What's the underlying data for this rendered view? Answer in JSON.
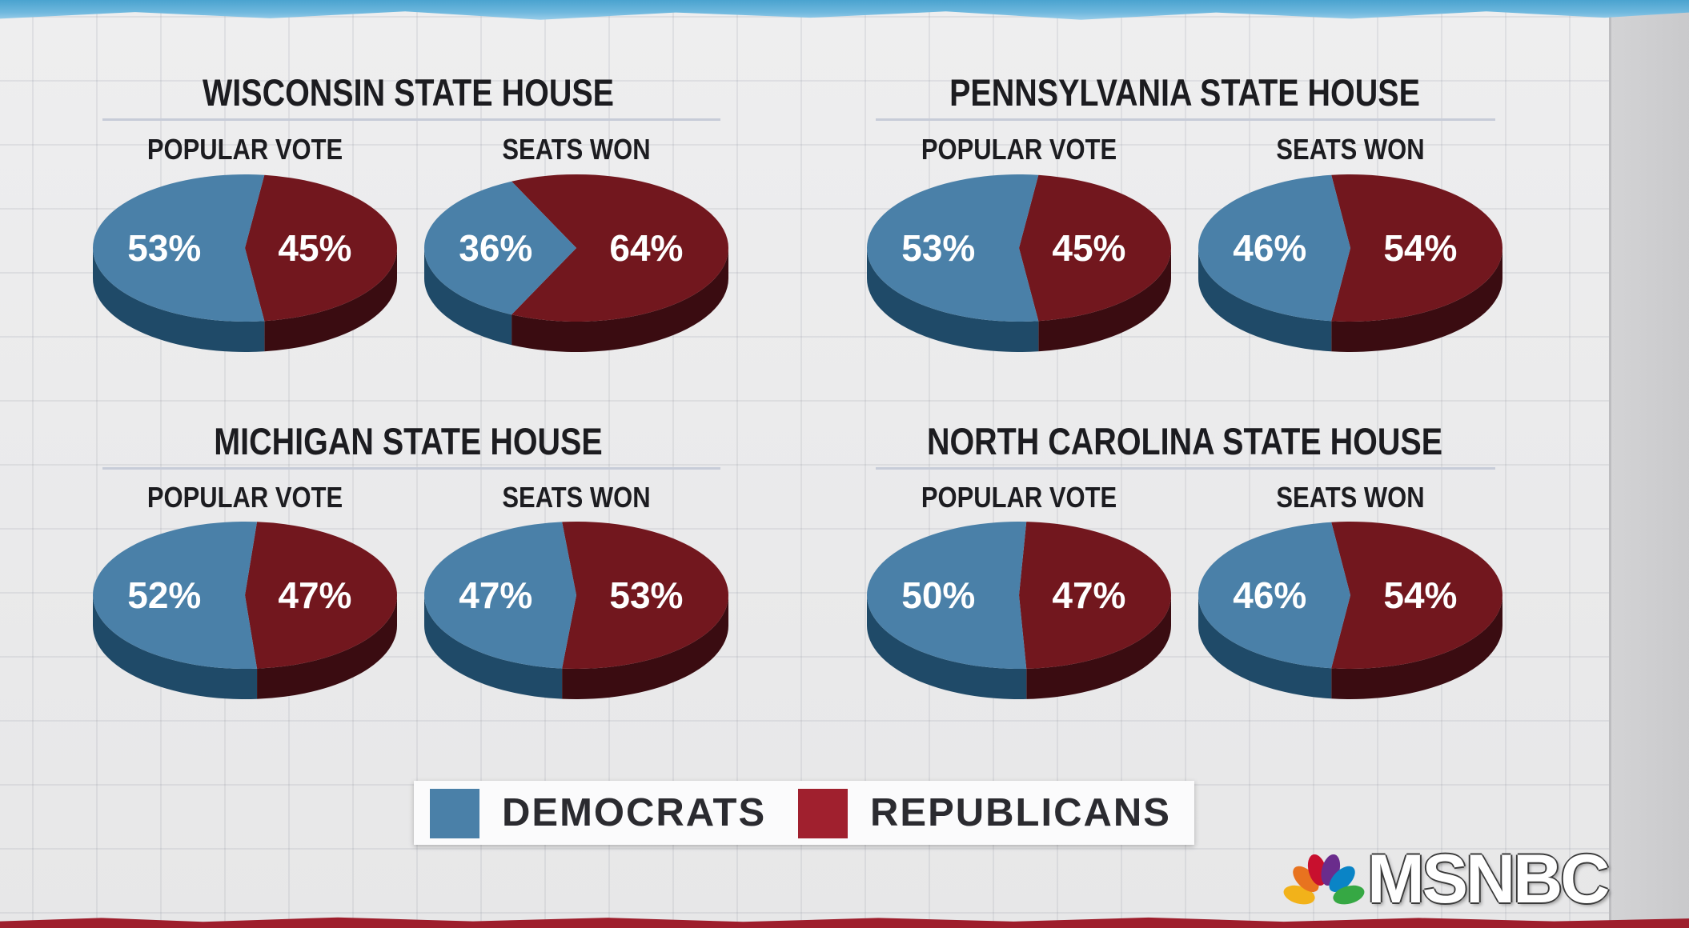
{
  "colors": {
    "democrats": "#4a80a8",
    "democrats_side": "#1f4a68",
    "republicans": "#72171e",
    "republicans_side": "#3a0c11",
    "label": "#ffffff"
  },
  "chart_data": [
    {
      "type": "pie",
      "title": "WISCONSIN STATE HOUSE",
      "panels": [
        {
          "label": "POPULAR VOTE",
          "slices": [
            {
              "name": "Democrats",
              "value": 53,
              "text": "53%"
            },
            {
              "name": "Republicans",
              "value": 45,
              "text": "45%"
            }
          ]
        },
        {
          "label": "SEATS WON",
          "slices": [
            {
              "name": "Democrats",
              "value": 36,
              "text": "36%"
            },
            {
              "name": "Republicans",
              "value": 64,
              "text": "64%"
            }
          ]
        }
      ]
    },
    {
      "type": "pie",
      "title": "PENNSYLVANIA STATE HOUSE",
      "panels": [
        {
          "label": "POPULAR VOTE",
          "slices": [
            {
              "name": "Democrats",
              "value": 53,
              "text": "53%"
            },
            {
              "name": "Republicans",
              "value": 45,
              "text": "45%"
            }
          ]
        },
        {
          "label": "SEATS WON",
          "slices": [
            {
              "name": "Democrats",
              "value": 46,
              "text": "46%"
            },
            {
              "name": "Republicans",
              "value": 54,
              "text": "54%"
            }
          ]
        }
      ]
    },
    {
      "type": "pie",
      "title": "MICHIGAN STATE HOUSE",
      "panels": [
        {
          "label": "POPULAR VOTE",
          "slices": [
            {
              "name": "Democrats",
              "value": 52,
              "text": "52%"
            },
            {
              "name": "Republicans",
              "value": 47,
              "text": "47%"
            }
          ]
        },
        {
          "label": "SEATS WON",
          "slices": [
            {
              "name": "Democrats",
              "value": 47,
              "text": "47%"
            },
            {
              "name": "Republicans",
              "value": 53,
              "text": "53%"
            }
          ]
        }
      ]
    },
    {
      "type": "pie",
      "title": "NORTH CAROLINA STATE HOUSE",
      "panels": [
        {
          "label": "POPULAR VOTE",
          "slices": [
            {
              "name": "Democrats",
              "value": 50,
              "text": "50%"
            },
            {
              "name": "Republicans",
              "value": 47,
              "text": "47%"
            }
          ]
        },
        {
          "label": "SEATS WON",
          "slices": [
            {
              "name": "Democrats",
              "value": 46,
              "text": "46%"
            },
            {
              "name": "Republicans",
              "value": 54,
              "text": "54%"
            }
          ]
        }
      ]
    }
  ],
  "legend": {
    "items": [
      {
        "label": "DEMOCRATS"
      },
      {
        "label": "REPUBLICANS"
      }
    ]
  },
  "branding": {
    "logo_text": "MSNBC",
    "peacock_colors": [
      "#f2b21a",
      "#e8731f",
      "#c8102e",
      "#6a2c8c",
      "#0a84c6",
      "#36a844"
    ]
  }
}
